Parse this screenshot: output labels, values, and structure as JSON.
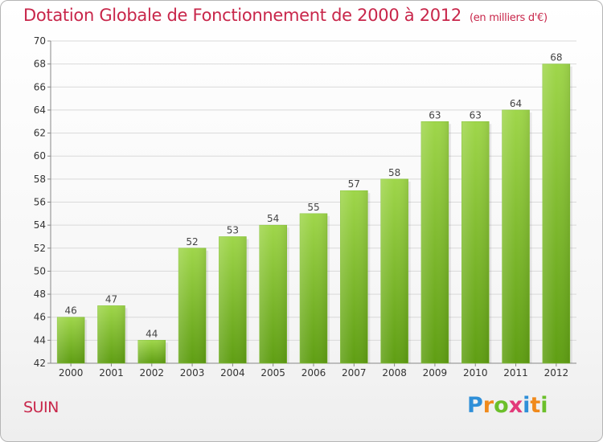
{
  "chart_data": {
    "type": "bar",
    "title": "Dotation Globale de Fonctionnement de 2000 à 2012",
    "subtitle": "(en milliers d'€)",
    "categories": [
      "2000",
      "2001",
      "2002",
      "2003",
      "2004",
      "2005",
      "2006",
      "2007",
      "2008",
      "2009",
      "2010",
      "2011",
      "2012"
    ],
    "values": [
      46,
      47,
      44,
      52,
      53,
      54,
      55,
      57,
      58,
      63,
      63,
      64,
      68
    ],
    "ylim": [
      42,
      70
    ],
    "yticks": [
      42,
      44,
      46,
      48,
      50,
      52,
      54,
      56,
      58,
      60,
      62,
      64,
      66,
      68,
      70
    ],
    "xlabel": "",
    "ylabel": "",
    "grid": true,
    "bar_color_top": "#9fd64a",
    "bar_color_bottom": "#5f9e13",
    "grid_color": "#d9d9d9"
  },
  "footer": {
    "commune": "SUIN",
    "brand_letters": [
      "P",
      "r",
      "o",
      "x",
      "i",
      "t",
      "i"
    ],
    "brand_colors": [
      "#2f8fd8",
      "#f08a1c",
      "#6bbf2a",
      "#e23a7a",
      "#2f8fd8",
      "#f08a1c",
      "#6bbf2a"
    ]
  },
  "colors": {
    "title": "#c8264a",
    "axis_text": "#333333"
  }
}
